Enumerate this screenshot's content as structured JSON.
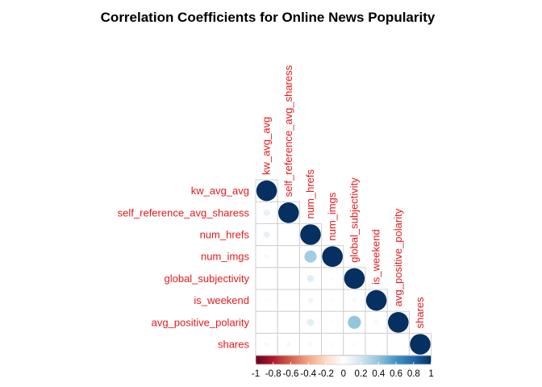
{
  "chart_data": {
    "type": "heatmap",
    "title": "Correlation Coefficients for Online News Popularity",
    "variables": [
      "kw_avg_avg",
      "self_reference_avg_sharess",
      "num_hrefs",
      "num_imgs",
      "global_subjectivity",
      "is_weekend",
      "avg_positive_polarity",
      "shares"
    ],
    "layout": "lower-triangle",
    "glyph": "circle",
    "label_color": "#e31a1c",
    "values": [
      [
        1.0
      ],
      [
        0.1,
        1.0
      ],
      [
        0.1,
        0.0,
        1.0
      ],
      [
        0.05,
        0.02,
        0.35,
        1.0
      ],
      [
        0.0,
        0.0,
        0.12,
        0.02,
        1.0
      ],
      [
        0.02,
        0.0,
        0.07,
        0.02,
        0.05,
        1.0
      ],
      [
        0.0,
        0.0,
        0.12,
        0.02,
        0.4,
        0.05,
        1.0
      ],
      [
        0.05,
        0.05,
        0.05,
        0.03,
        0.03,
        0.03,
        0.02,
        1.0
      ]
    ],
    "colorbar": {
      "range": [
        -1,
        1
      ],
      "tick_labels": [
        "-1",
        "-0.8",
        "-0.6",
        "-0.4",
        "-0.2",
        "0",
        "0.2",
        "0.4",
        "0.6",
        "0.8",
        "1"
      ],
      "colors": [
        "#67001f",
        "#b2182b",
        "#d6604d",
        "#f4a582",
        "#fddbc7",
        "#ffffff",
        "#d1e5f0",
        "#92c5de",
        "#4393c3",
        "#2166ac",
        "#053061"
      ]
    }
  }
}
